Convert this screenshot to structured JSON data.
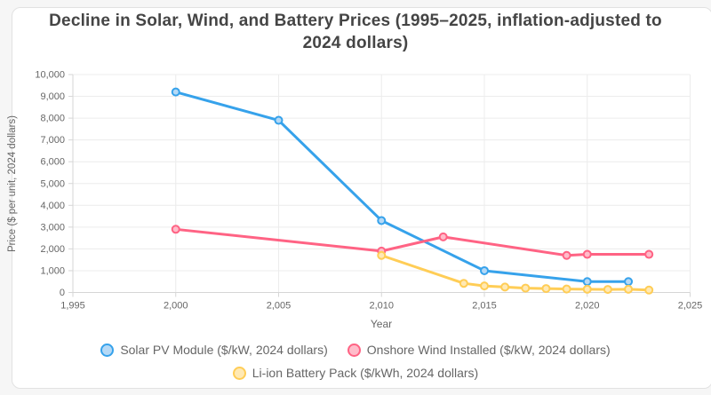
{
  "header": {
    "title_lines": [
      "Decline in Solar, Wind, and Battery Prices (1995–2025, inflation-adjusted to",
      "2024 dollars)"
    ]
  },
  "colors": {
    "grid": "#ececec",
    "axis_border": "#d6d6d6",
    "tick_text": "#666666",
    "axis_title_text": "#666666",
    "title_text": "#454545",
    "legend_text": "#666666",
    "card_background": "#ffffff",
    "page_background": "#f6f6f6"
  },
  "chart_data": {
    "type": "line",
    "title": "Decline in Solar, Wind, and Battery Prices (1995–2025, inflation-adjusted to 2024 dollars)",
    "xlabel": "Year",
    "ylabel": "Price ($ per unit, 2024 dollars)",
    "xlim": [
      1995,
      2025
    ],
    "ylim": [
      0,
      10000
    ],
    "grid": true,
    "legend_position": "bottom",
    "x_ticks": [
      {
        "v": 1995,
        "label": "1,995"
      },
      {
        "v": 2000,
        "label": "2,000"
      },
      {
        "v": 2005,
        "label": "2,005"
      },
      {
        "v": 2010,
        "label": "2,010"
      },
      {
        "v": 2015,
        "label": "2,015"
      },
      {
        "v": 2020,
        "label": "2,020"
      },
      {
        "v": 2025,
        "label": "2,025"
      }
    ],
    "y_ticks": [
      {
        "v": 0,
        "label": "0"
      },
      {
        "v": 1000,
        "label": "1,000"
      },
      {
        "v": 2000,
        "label": "2,000"
      },
      {
        "v": 3000,
        "label": "3,000"
      },
      {
        "v": 4000,
        "label": "4,000"
      },
      {
        "v": 5000,
        "label": "5,000"
      },
      {
        "v": 6000,
        "label": "6,000"
      },
      {
        "v": 7000,
        "label": "7,000"
      },
      {
        "v": 8000,
        "label": "8,000"
      },
      {
        "v": 9000,
        "label": "9,000"
      },
      {
        "v": 10000,
        "label": "10,000"
      }
    ],
    "series": [
      {
        "name": "Solar PV Module ($/kW, 2024 dollars)",
        "color": "#36A2EB",
        "marker_fill": "#b5d9f6",
        "points": [
          [
            2000,
            9200
          ],
          [
            2005,
            7900
          ],
          [
            2010,
            3300
          ],
          [
            2015,
            1000
          ],
          [
            2020,
            500
          ],
          [
            2022,
            500
          ]
        ]
      },
      {
        "name": "Onshore Wind Installed ($/kW, 2024 dollars)",
        "color": "#FF6384",
        "marker_fill": "#ffbcca",
        "points": [
          [
            2000,
            2900
          ],
          [
            2010,
            1900
          ],
          [
            2013,
            2550
          ],
          [
            2019,
            1700
          ],
          [
            2020,
            1750
          ],
          [
            2023,
            1750
          ]
        ]
      },
      {
        "name": "Li-ion Battery Pack ($/kWh, 2024 dollars)",
        "color": "#FFCD56",
        "marker_fill": "#ffe9b4",
        "points": [
          [
            2010,
            1700
          ],
          [
            2014,
            420
          ],
          [
            2015,
            300
          ],
          [
            2016,
            250
          ],
          [
            2017,
            200
          ],
          [
            2018,
            180
          ],
          [
            2019,
            160
          ],
          [
            2020,
            150
          ],
          [
            2021,
            140
          ],
          [
            2022,
            150
          ],
          [
            2023,
            110
          ]
        ]
      }
    ]
  }
}
